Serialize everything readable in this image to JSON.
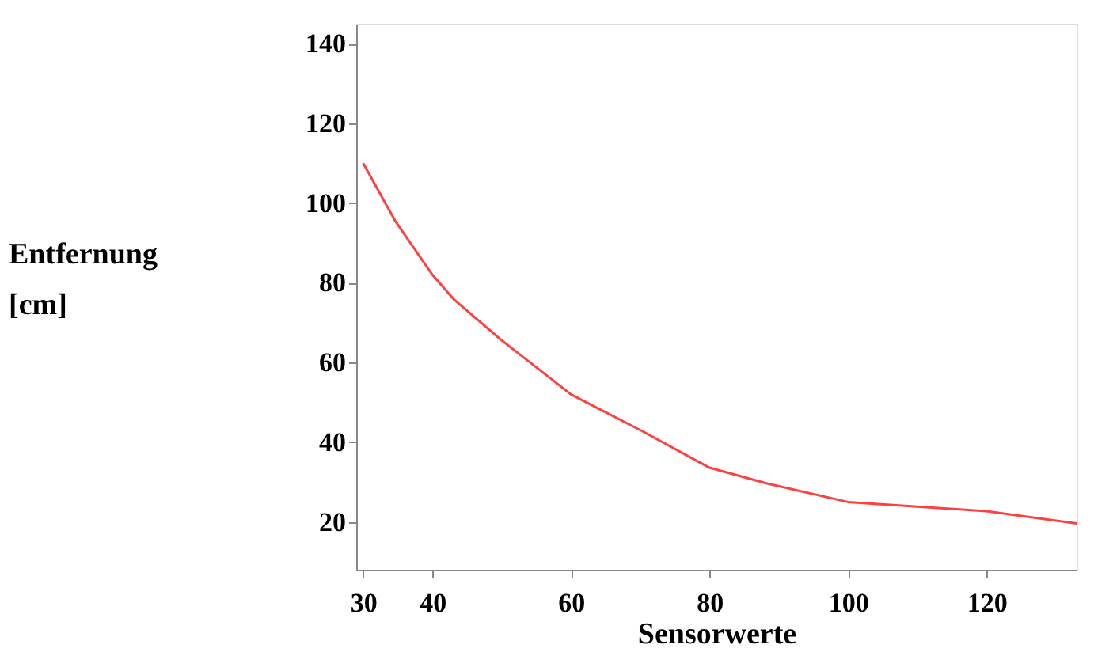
{
  "chart_data": {
    "type": "line",
    "xlabel": "Sensorwerte",
    "ylabel": "Entfernung\n[cm]",
    "x": [
      30,
      34.6,
      40,
      43,
      49.9,
      60,
      70.6,
      80,
      88.2,
      100,
      120,
      133
    ],
    "series": [
      {
        "color": "#ff4040",
        "values": [
          110,
          95.6,
          82,
          76,
          65.7,
          52,
          42.5,
          33.6,
          29.7,
          25,
          22.7,
          19.6
        ]
      }
    ],
    "xlim": [
      29,
      133
    ],
    "xticks": [
      30,
      40,
      60,
      80,
      100,
      120
    ],
    "ylim": [
      8,
      145
    ],
    "yticks": [
      20,
      40,
      60,
      80,
      100,
      120,
      140
    ],
    "grid": false,
    "marker": "none",
    "line_style": "solid"
  }
}
